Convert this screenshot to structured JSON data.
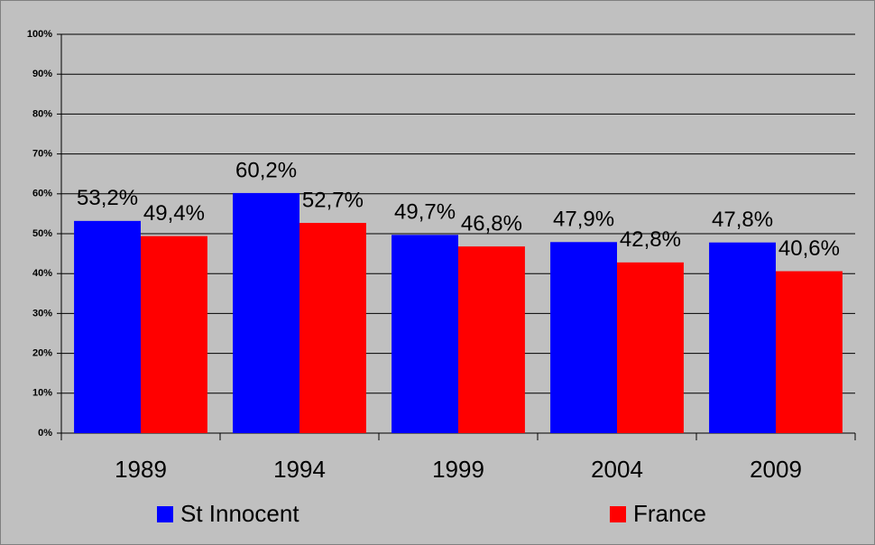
{
  "chart_data": {
    "type": "bar",
    "categories": [
      "1989",
      "1994",
      "1999",
      "2004",
      "2009"
    ],
    "series": [
      {
        "name": "St Innocent",
        "color": "#0000ff",
        "values": [
          53.2,
          60.2,
          49.7,
          47.9,
          47.8
        ],
        "value_labels": [
          "53,2%",
          "60,2%",
          "49,7%",
          "47,9%",
          "47,8%"
        ]
      },
      {
        "name": "France",
        "color": "#ff0000",
        "values": [
          49.4,
          52.7,
          46.8,
          42.8,
          40.6
        ],
        "value_labels": [
          "49,4%",
          "52,7%",
          "46,8%",
          "42,8%",
          "40,6%"
        ]
      }
    ],
    "ylim": [
      0,
      100
    ],
    "yticks": [
      {
        "value": 0,
        "label": "0%"
      },
      {
        "value": 10,
        "label": "10%"
      },
      {
        "value": 20,
        "label": "20%"
      },
      {
        "value": 30,
        "label": "30%"
      },
      {
        "value": 40,
        "label": "40%"
      },
      {
        "value": 50,
        "label": "50%"
      },
      {
        "value": 60,
        "label": "60%"
      },
      {
        "value": 70,
        "label": "70%"
      },
      {
        "value": 80,
        "label": "80%"
      },
      {
        "value": 90,
        "label": "90%"
      },
      {
        "value": 100,
        "label": "100%"
      }
    ],
    "grid": true,
    "legend": "bottom"
  }
}
